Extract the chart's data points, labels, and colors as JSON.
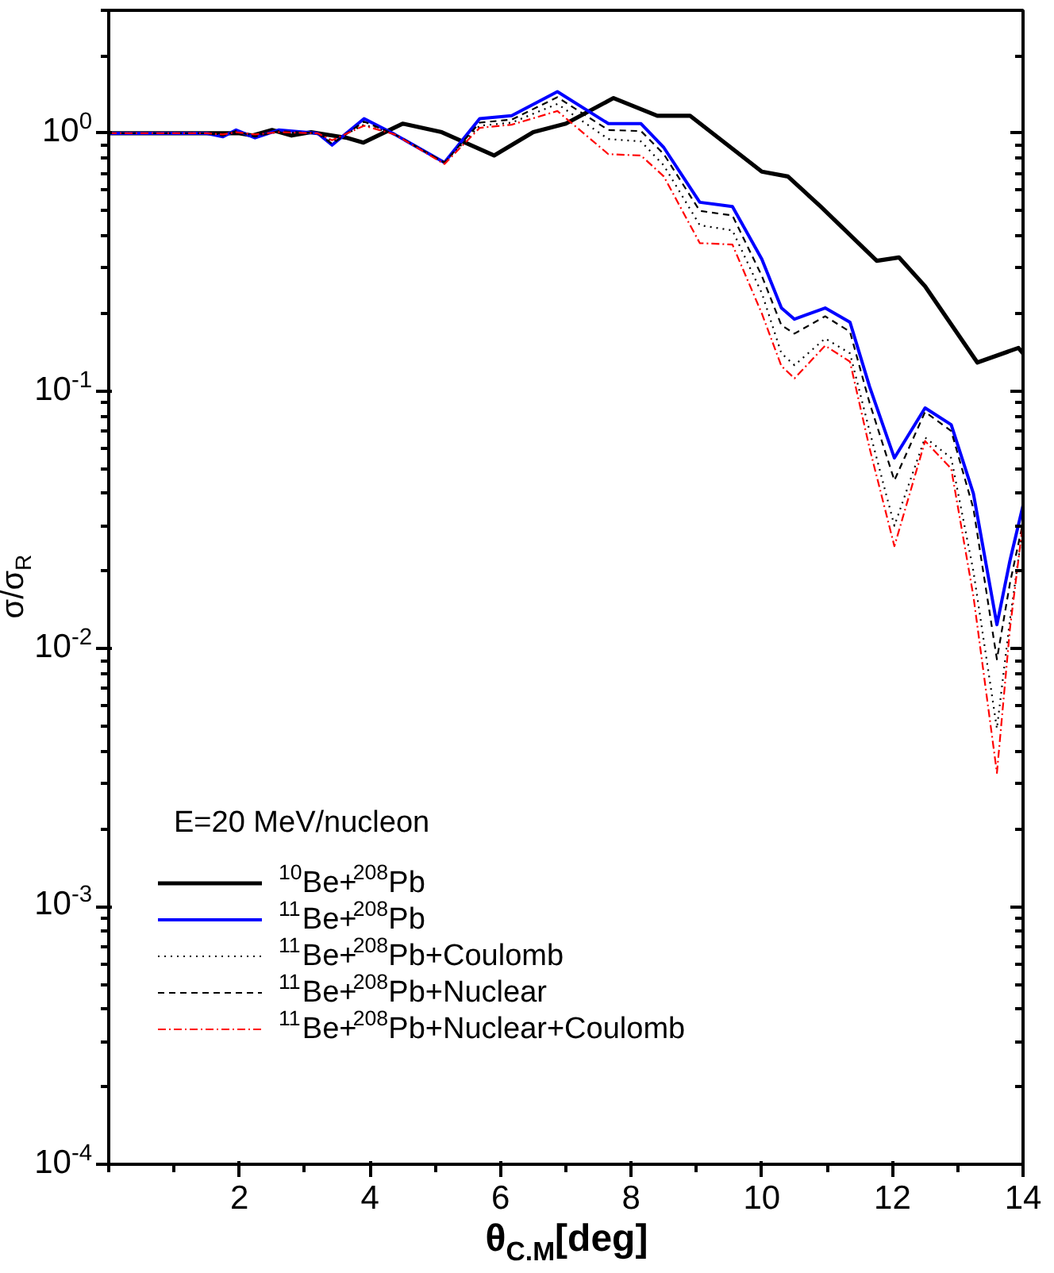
{
  "chart_data": {
    "type": "line",
    "xlabel": "θ$_{C.M}$[deg]",
    "ylabel": "σ/σ$_{R}$",
    "legend_title": "E=20 MeV/nucleon",
    "log": "y",
    "xlim": [
      0,
      14
    ],
    "ylim": [
      0.0001,
      3
    ],
    "xticks": [
      2,
      4,
      6,
      8,
      10,
      12,
      14
    ],
    "yticks": [
      {
        "value": 0.0001,
        "label": "10$^{-4}$"
      },
      {
        "value": 0.001,
        "label": "10$^{-3}$"
      },
      {
        "value": 0.01,
        "label": "10$^{-2}$"
      },
      {
        "value": 0.1,
        "label": "10$^{-1}$"
      },
      {
        "value": 1,
        "label": "10$^{0}$"
      }
    ],
    "grid": false,
    "legend": "bottom left",
    "marker": "none",
    "series": [
      {
        "name": "$^{10}$Be+$^{208}$Pb",
        "color": "#000000",
        "line_style": "solid",
        "x": [
          0,
          2,
          2.2,
          2.5,
          2.8,
          3.1,
          3.65,
          3.9,
          4.5,
          5.1,
          5.9,
          6.5,
          7.0,
          7.73,
          8.4,
          8.9,
          10.0,
          10.4,
          10.9,
          11.76,
          12.1,
          12.5,
          13.3,
          13.93,
          14.0
        ],
        "values": [
          1,
          1,
          0.98,
          1.03,
          0.98,
          1.01,
          0.96,
          0.92,
          1.09,
          1.01,
          0.82,
          1.01,
          1.09,
          1.37,
          1.17,
          1.17,
          0.71,
          0.68,
          0.52,
          0.32,
          0.33,
          0.255,
          0.129,
          0.147,
          0.14
        ]
      },
      {
        "name": "$^{11}$Be+$^{208}$Pb",
        "color": "#0000ff",
        "line_style": "solid",
        "x": [
          0,
          1.5,
          1.75,
          1.95,
          2.24,
          2.6,
          3.2,
          3.42,
          3.91,
          4.38,
          5.14,
          5.68,
          6.17,
          6.87,
          7.65,
          8.15,
          8.5,
          9.05,
          9.55,
          10.0,
          10.3,
          10.5,
          10.97,
          11.35,
          11.65,
          12.03,
          12.5,
          12.9,
          13.24,
          13.6,
          13.8,
          14.0
        ],
        "values": [
          1,
          1,
          0.97,
          1.03,
          0.96,
          1.03,
          1.0,
          0.9,
          1.14,
          0.99,
          0.77,
          1.14,
          1.17,
          1.45,
          1.09,
          1.09,
          0.88,
          0.54,
          0.52,
          0.325,
          0.21,
          0.19,
          0.21,
          0.185,
          0.104,
          0.055,
          0.086,
          0.074,
          0.04,
          0.0124,
          0.022,
          0.036
        ]
      },
      {
        "name": "$^{11}$Be+$^{208}$Pb+Coulomb",
        "color": "#000000",
        "line_style": "dotted",
        "x": [
          0,
          1.5,
          1.75,
          1.95,
          2.24,
          2.6,
          3.2,
          3.42,
          3.91,
          4.38,
          5.14,
          5.68,
          6.17,
          6.87,
          7.65,
          8.15,
          8.5,
          9.05,
          9.55,
          10.0,
          10.3,
          10.5,
          10.97,
          11.35,
          11.65,
          12.03,
          12.5,
          12.9,
          13.24,
          13.6,
          13.8,
          14.0
        ],
        "values": [
          1,
          1,
          0.99,
          1.01,
          0.98,
          1.01,
          1.0,
          0.93,
          1.08,
          0.99,
          0.77,
          1.07,
          1.1,
          1.3,
          0.95,
          0.93,
          0.75,
          0.44,
          0.42,
          0.24,
          0.14,
          0.126,
          0.16,
          0.14,
          0.07,
          0.03,
          0.066,
          0.055,
          0.02,
          0.0049,
          0.013,
          0.03
        ]
      },
      {
        "name": "$^{11}$Be+$^{208}$Pb+Nuclear",
        "color": "#000000",
        "line_style": "dashed",
        "x": [
          0,
          1.5,
          1.75,
          1.95,
          2.24,
          2.6,
          3.2,
          3.42,
          3.91,
          4.38,
          5.14,
          5.68,
          6.17,
          6.87,
          7.65,
          8.15,
          8.5,
          9.05,
          9.55,
          10.0,
          10.3,
          10.5,
          10.97,
          11.35,
          11.65,
          12.03,
          12.5,
          12.9,
          13.24,
          13.6,
          13.8,
          14.0
        ],
        "values": [
          1,
          1,
          0.98,
          1.02,
          0.97,
          1.02,
          1.0,
          0.91,
          1.11,
          0.99,
          0.77,
          1.1,
          1.13,
          1.38,
          1.03,
          1.02,
          0.83,
          0.5,
          0.48,
          0.28,
          0.18,
          0.167,
          0.195,
          0.17,
          0.09,
          0.045,
          0.083,
          0.07,
          0.035,
          0.0091,
          0.018,
          0.031
        ]
      },
      {
        "name": "$^{11}$Be+$^{208}$Pb+Nuclear+Coulomb",
        "color": "#ff0000",
        "line_style": "dashdot",
        "x": [
          0,
          1.5,
          1.75,
          1.95,
          2.24,
          2.6,
          3.2,
          3.42,
          3.91,
          4.38,
          5.14,
          5.68,
          6.17,
          6.87,
          7.65,
          8.15,
          8.5,
          9.05,
          9.55,
          10.0,
          10.3,
          10.5,
          10.97,
          11.35,
          11.65,
          12.03,
          12.5,
          12.9,
          13.24,
          13.6,
          13.8,
          14.0
        ],
        "values": [
          1,
          1,
          0.99,
          1.01,
          0.99,
          1.01,
          1.0,
          0.94,
          1.07,
          0.99,
          0.76,
          1.05,
          1.08,
          1.22,
          0.83,
          0.82,
          0.68,
          0.375,
          0.37,
          0.2,
          0.125,
          0.112,
          0.15,
          0.13,
          0.06,
          0.025,
          0.064,
          0.05,
          0.016,
          0.0033,
          0.012,
          0.031
        ]
      }
    ]
  }
}
